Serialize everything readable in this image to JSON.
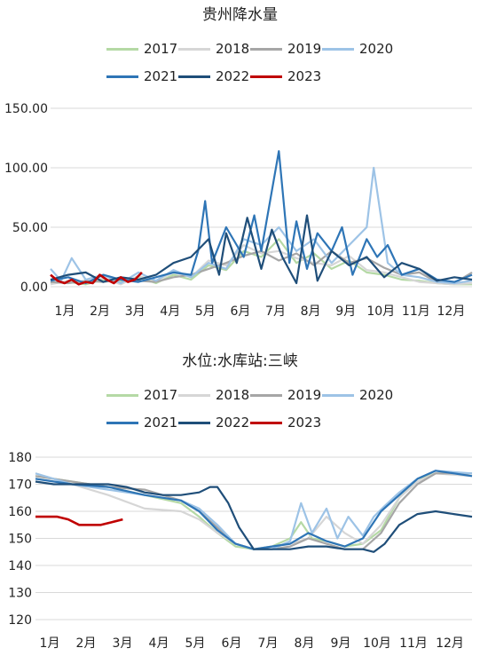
{
  "chart_data": [
    {
      "type": "line",
      "title": "贵州降水量",
      "xlabel": "",
      "ylabel": "",
      "ylim": [
        0,
        150
      ],
      "yticks": [
        "0.00",
        "50.00",
        "100.00",
        "150.00"
      ],
      "months": [
        "1月",
        "2月",
        "3月",
        "4月",
        "5月",
        "6月",
        "7月",
        "8月",
        "9月",
        "10月",
        "11月",
        "12月"
      ],
      "grid": true,
      "legend_position": "top",
      "series": [
        {
          "name": "2017",
          "color": "#b5d9a5",
          "x": [
            0,
            0.5,
            1,
            1.5,
            2,
            2.5,
            3,
            3.5,
            4,
            4.5,
            5,
            5.5,
            6,
            6.5,
            7,
            7.5,
            8,
            8.5,
            9,
            9.5,
            10,
            10.5,
            11,
            11.5,
            12
          ],
          "values": [
            3,
            4,
            2,
            6,
            4,
            8,
            3,
            10,
            6,
            18,
            14,
            30,
            25,
            40,
            20,
            28,
            15,
            22,
            12,
            10,
            6,
            5,
            3,
            2,
            2
          ]
        },
        {
          "name": "2018",
          "color": "#d6d6d6",
          "x": [
            0,
            0.5,
            1,
            1.5,
            2,
            2.5,
            3,
            3.5,
            4,
            4.5,
            5,
            5.5,
            6,
            6.5,
            7,
            7.5,
            8,
            8.5,
            9,
            9.5,
            10,
            10.5,
            11,
            11.5,
            12
          ],
          "values": [
            2,
            5,
            3,
            7,
            2,
            9,
            5,
            12,
            8,
            22,
            18,
            35,
            28,
            30,
            24,
            20,
            18,
            26,
            14,
            12,
            8,
            4,
            3,
            2,
            3
          ]
        },
        {
          "name": "2019",
          "color": "#a6a6a6",
          "x": [
            0,
            0.5,
            1,
            1.5,
            2,
            2.5,
            3,
            3.5,
            4,
            4.5,
            5,
            5.5,
            6,
            6.5,
            7,
            7.5,
            8,
            8.5,
            9,
            9.5,
            10,
            10.5,
            11,
            11.5,
            12
          ],
          "values": [
            4,
            3,
            5,
            4,
            6,
            5,
            4,
            8,
            10,
            15,
            20,
            26,
            30,
            22,
            28,
            18,
            30,
            20,
            24,
            16,
            10,
            12,
            4,
            3,
            12
          ]
        },
        {
          "name": "2020",
          "color": "#9dc3e6",
          "x": [
            0,
            0.3,
            0.6,
            1,
            1.5,
            2,
            2.5,
            3,
            3.5,
            4,
            4.5,
            5,
            5.5,
            6,
            6.5,
            7,
            7.5,
            8,
            8.5,
            9,
            9.2,
            9.4,
            9.6,
            10,
            10.5,
            11,
            11.5,
            12
          ],
          "values": [
            15,
            5,
            24,
            6,
            10,
            3,
            12,
            5,
            14,
            8,
            20,
            15,
            40,
            35,
            50,
            30,
            40,
            20,
            35,
            50,
            100,
            60,
            20,
            10,
            8,
            4,
            3,
            5
          ]
        },
        {
          "name": "2021",
          "color": "#2e75b6",
          "x": [
            0,
            0.5,
            1,
            1.5,
            2,
            2.5,
            3,
            3.5,
            4,
            4.2,
            4.4,
            4.6,
            5,
            5.5,
            5.8,
            6,
            6.5,
            6.8,
            7,
            7.3,
            7.6,
            8,
            8.3,
            8.6,
            9,
            9.3,
            9.6,
            10,
            10.5,
            11,
            11.5,
            12
          ],
          "values": [
            5,
            8,
            3,
            10,
            6,
            4,
            8,
            12,
            10,
            30,
            72,
            20,
            50,
            25,
            60,
            30,
            114,
            20,
            55,
            15,
            45,
            30,
            50,
            10,
            40,
            25,
            35,
            10,
            15,
            6,
            4,
            10
          ]
        },
        {
          "name": "2022",
          "color": "#1f4e79",
          "x": [
            0,
            0.5,
            1,
            1.5,
            2,
            2.5,
            3,
            3.5,
            4,
            4.5,
            4.8,
            5,
            5.3,
            5.6,
            6,
            6.3,
            6.6,
            7,
            7.3,
            7.6,
            8,
            8.5,
            9,
            9.5,
            10,
            10.5,
            11,
            11.5,
            12
          ],
          "values": [
            6,
            10,
            12,
            4,
            8,
            6,
            10,
            20,
            25,
            40,
            10,
            45,
            20,
            58,
            15,
            48,
            25,
            3,
            60,
            5,
            30,
            18,
            25,
            8,
            20,
            15,
            5,
            8,
            6
          ]
        },
        {
          "name": "2023",
          "color": "#c00000",
          "x": [
            0,
            0.2,
            0.4,
            0.6,
            0.8,
            1,
            1.2,
            1.4,
            1.6,
            1.8,
            2,
            2.2,
            2.4,
            2.6
          ],
          "values": [
            10,
            5,
            3,
            6,
            2,
            4,
            3,
            10,
            6,
            3,
            8,
            4,
            6,
            12
          ]
        }
      ]
    },
    {
      "type": "line",
      "title": "水位:水库站:三峡",
      "xlabel": "",
      "ylabel": "",
      "ylim": [
        120,
        180
      ],
      "yticks": [
        "120",
        "130",
        "140",
        "150",
        "160",
        "170",
        "180"
      ],
      "months": [
        "1月",
        "2月",
        "3月",
        "4月",
        "5月",
        "6月",
        "7月",
        "8月",
        "9月",
        "10月",
        "11月",
        "12月"
      ],
      "grid": true,
      "legend_position": "top",
      "series": [
        {
          "name": "2017",
          "color": "#b5d9a5",
          "x": [
            0,
            1,
            2,
            3,
            4,
            4.5,
            5,
            5.5,
            6,
            6.5,
            7,
            7.3,
            7.6,
            8,
            8.5,
            9,
            9.5,
            10,
            10.5,
            11,
            12
          ],
          "values": [
            173,
            171,
            169,
            166,
            163,
            158,
            152,
            147,
            146,
            147,
            150,
            156,
            150,
            149,
            147,
            148,
            153,
            165,
            172,
            174,
            174
          ]
        },
        {
          "name": "2018",
          "color": "#d6d6d6",
          "x": [
            0,
            1,
            2,
            3,
            4,
            4.5,
            5,
            5.5,
            6,
            6.5,
            7,
            7.5,
            8,
            8.5,
            9,
            9.5,
            10,
            10.5,
            11,
            12
          ],
          "values": [
            174,
            170,
            166,
            161,
            160,
            157,
            152,
            148,
            146,
            147,
            148,
            150,
            158,
            152,
            148,
            155,
            165,
            171,
            174,
            173
          ]
        },
        {
          "name": "2019",
          "color": "#a6a6a6",
          "x": [
            0,
            1,
            2,
            3,
            4,
            4.5,
            5,
            5.5,
            6,
            6.5,
            7,
            7.5,
            8,
            8.5,
            9,
            9.5,
            10,
            10.5,
            11,
            12
          ],
          "values": [
            173,
            171,
            169,
            168,
            164,
            160,
            154,
            148,
            146,
            146,
            147,
            150,
            148,
            146,
            146,
            152,
            163,
            170,
            174,
            174
          ]
        },
        {
          "name": "2020",
          "color": "#9dc3e6",
          "x": [
            0,
            1,
            2,
            3,
            4,
            4.5,
            5,
            5.5,
            6,
            6.5,
            7,
            7.3,
            7.6,
            8,
            8.3,
            8.6,
            9,
            9.3,
            9.6,
            10,
            10.5,
            11,
            12
          ],
          "values": [
            174,
            170,
            168,
            166,
            164,
            161,
            155,
            148,
            146,
            146,
            149,
            163,
            152,
            161,
            150,
            158,
            151,
            158,
            162,
            167,
            172,
            175,
            174
          ]
        },
        {
          "name": "2021",
          "color": "#2e75b6",
          "x": [
            0,
            1,
            2,
            3,
            4,
            4.5,
            5,
            5.5,
            6,
            6.5,
            7,
            7.5,
            8,
            8.5,
            9,
            9.5,
            10,
            10.5,
            11,
            12
          ],
          "values": [
            172,
            170,
            169,
            166,
            164,
            160,
            153,
            148,
            146,
            147,
            148,
            152,
            149,
            147,
            150,
            160,
            166,
            172,
            175,
            173
          ]
        },
        {
          "name": "2022",
          "color": "#1f4e79",
          "x": [
            0,
            0.5,
            1,
            1.5,
            2,
            2.5,
            3,
            3.5,
            4,
            4.5,
            4.8,
            5,
            5.3,
            5.6,
            6,
            6.5,
            7,
            7.5,
            8,
            8.5,
            9,
            9.3,
            9.6,
            10,
            10.5,
            11,
            11.5,
            12
          ],
          "values": [
            171,
            170,
            170,
            170,
            170,
            169,
            167,
            166,
            166,
            167,
            169,
            169,
            163,
            154,
            146,
            146,
            146,
            147,
            147,
            146,
            146,
            145,
            148,
            155,
            159,
            160,
            159,
            158
          ]
        },
        {
          "name": "2023",
          "color": "#c00000",
          "x": [
            0,
            0.3,
            0.6,
            0.9,
            1.2,
            1.5,
            1.8,
            2.1,
            2.4
          ],
          "values": [
            158,
            158,
            158,
            157,
            155,
            155,
            155,
            156,
            157
          ]
        }
      ]
    }
  ]
}
